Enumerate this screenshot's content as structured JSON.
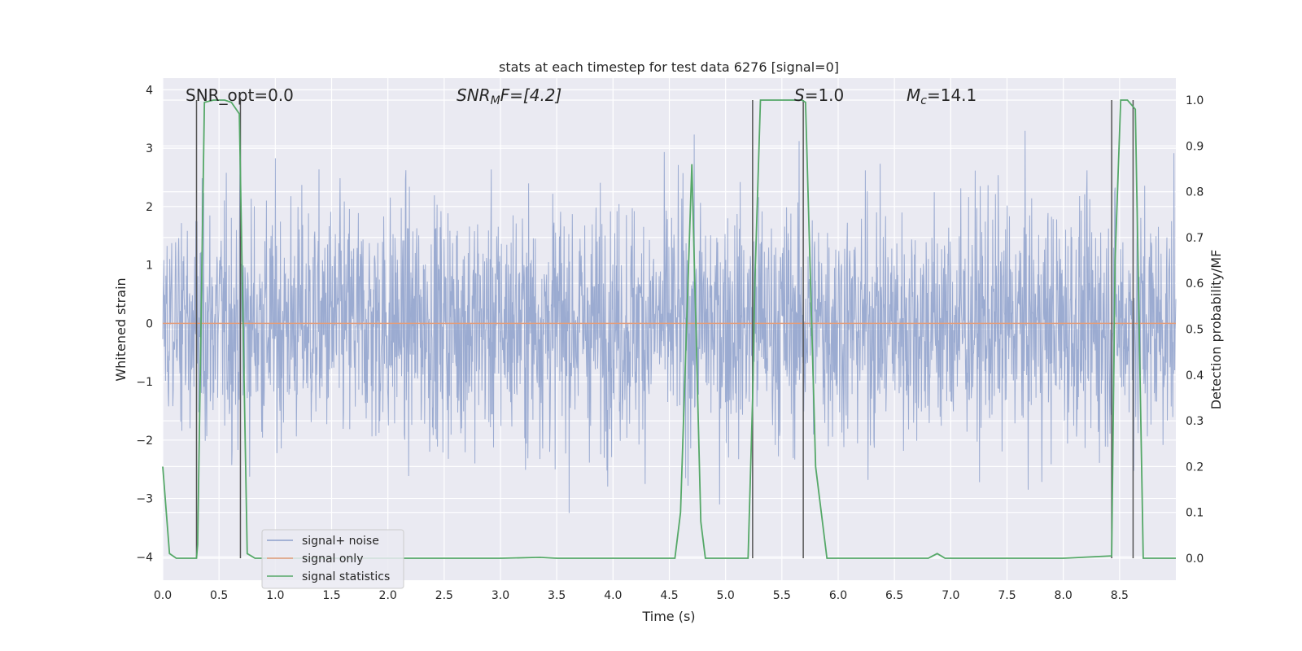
{
  "chart_data": {
    "type": "line",
    "title": "stats at each timestep for test data 6276 [signal=0]",
    "xlabel": "Time (s)",
    "ylabel_left": "Whitened strain",
    "ylabel_right": "Detection probability/MF",
    "xlim": [
      0,
      9
    ],
    "ylim_left": [
      -4.4,
      4.2
    ],
    "ylim_right": [
      -0.048,
      1.048
    ],
    "x_ticks": [
      0.0,
      0.5,
      1.0,
      1.5,
      2.0,
      2.5,
      3.0,
      3.5,
      4.0,
      4.5,
      5.0,
      5.5,
      6.0,
      6.5,
      7.0,
      7.5,
      8.0,
      8.5
    ],
    "x_tick_labels": [
      "0.0",
      "0.5",
      "1.0",
      "1.5",
      "2.0",
      "2.5",
      "3.0",
      "3.5",
      "4.0",
      "4.5",
      "5.0",
      "5.5",
      "6.0",
      "6.5",
      "7.0",
      "7.5",
      "8.0",
      "8.5"
    ],
    "y_left_ticks": [
      -4,
      -3,
      -2,
      -1,
      0,
      1,
      2,
      3,
      4
    ],
    "y_left_tick_labels": [
      "−4",
      "−3",
      "−2",
      "−1",
      "0",
      "1",
      "2",
      "3",
      "4"
    ],
    "y_right_ticks": [
      0.0,
      0.1,
      0.2,
      0.3,
      0.4,
      0.5,
      0.6,
      0.7,
      0.8,
      0.9,
      1.0
    ],
    "y_right_tick_labels": [
      "0.0",
      "0.1",
      "0.2",
      "0.3",
      "0.4",
      "0.5",
      "0.6",
      "0.7",
      "0.8",
      "0.9",
      "1.0"
    ],
    "grid": true,
    "legend_position": "lower-left",
    "annotations": {
      "snr_opt": "SNR_opt=0.0",
      "snr_mf_name": "SNR",
      "snr_mf_sub": "M",
      "snr_mf_rest": "F=[4.2]",
      "s_name": "S",
      "s_rest": "=1.0",
      "mc_name": "M",
      "mc_sub": "c",
      "mc_rest": "=14.1"
    },
    "series": [
      {
        "name": "signal+ noise",
        "axis": "left",
        "color": "#8da0cb",
        "description_of_values": "white noise, amplitude mostly within ±2.5, peaks near ±3.5"
      },
      {
        "name": "signal only",
        "axis": "left",
        "color": "#e39c7a",
        "x": [
          0,
          9
        ],
        "y": [
          0,
          0
        ]
      },
      {
        "name": "signal statistics",
        "axis": "right",
        "color": "#55a868",
        "x": [
          0.0,
          0.06,
          0.12,
          0.3,
          0.31,
          0.37,
          0.45,
          0.55,
          0.61,
          0.68,
          0.75,
          0.82,
          0.9,
          2.0,
          3.0,
          3.35,
          3.5,
          4.0,
          4.55,
          4.6,
          4.7,
          4.78,
          4.82,
          5.0,
          5.2,
          5.24,
          5.26,
          5.31,
          5.5,
          5.68,
          5.71,
          5.8,
          5.9,
          6.5,
          6.8,
          6.88,
          6.95,
          7.5,
          8.0,
          8.43,
          8.46,
          8.51,
          8.57,
          8.64,
          8.71,
          9.0
        ],
        "y": [
          0.2,
          0.01,
          0.0,
          0.0,
          0.03,
          0.995,
          1.0,
          1.0,
          0.995,
          0.97,
          0.01,
          0.0,
          0.0,
          0.0,
          0.0,
          0.002,
          0.0,
          0.0,
          0.0,
          0.1,
          0.86,
          0.08,
          0.0,
          0.0,
          0.0,
          0.35,
          0.6,
          1.0,
          1.0,
          1.0,
          0.995,
          0.2,
          0.0,
          0.0,
          0.0,
          0.01,
          0.0,
          0.0,
          0.0,
          0.005,
          0.65,
          1.0,
          1.0,
          0.98,
          0.0,
          0.0
        ]
      }
    ],
    "vertical_markers_x": [
      0.3,
      0.69,
      5.24,
      5.69,
      8.43,
      8.62
    ],
    "vertical_markers_color": "#555555"
  }
}
